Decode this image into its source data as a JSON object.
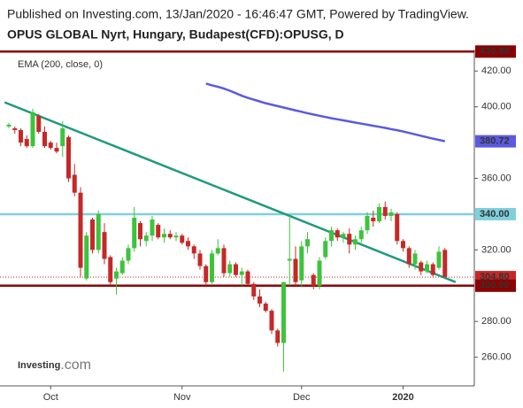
{
  "chart_data": {
    "type": "candlestick",
    "published": "Published on Investing.com, 13/Jan/2020 - 16:46:47 GMT, Powered by TradingView.",
    "title": "OPUS GLOBAL Nyrt, Hungary, Budapest(CFD):OPUSG, D",
    "logo": {
      "name": "Investing",
      "suffix": ".com"
    },
    "up_color": "#3cc43c",
    "down_color": "#c62828",
    "categories": [
      null,
      null,
      null,
      null,
      null,
      null,
      null,
      "Oct",
      null,
      null,
      null,
      null,
      null,
      null,
      null,
      null,
      null,
      null,
      null,
      null,
      null,
      null,
      null,
      null,
      null,
      null,
      null,
      null,
      null,
      "Nov",
      null,
      null,
      null,
      null,
      null,
      null,
      null,
      null,
      null,
      null,
      null,
      null,
      null,
      null,
      null,
      null,
      null,
      null,
      null,
      "Dec",
      null,
      null,
      null,
      null,
      null,
      null,
      null,
      null,
      null,
      null,
      null,
      null,
      null,
      null,
      null,
      null,
      "2020",
      null,
      null,
      null,
      null,
      null,
      null,
      null
    ],
    "open": [
      389,
      388,
      387,
      382,
      378,
      395,
      386,
      380,
      377,
      378,
      383,
      362,
      352,
      304,
      337,
      320,
      330,
      316,
      304,
      307,
      314,
      321,
      335,
      325,
      328,
      334,
      327,
      329,
      327,
      328,
      325,
      322,
      318,
      311,
      302,
      318,
      321,
      307,
      312,
      306,
      308,
      301,
      294,
      290,
      286,
      275,
      268,
      314,
      315,
      303,
      322,
      306,
      300,
      316,
      325,
      331,
      327,
      329,
      323,
      326,
      331,
      338,
      336,
      344,
      339,
      340,
      325,
      321,
      312,
      313,
      308,
      312,
      310,
      320
    ],
    "high": [
      391,
      389,
      388,
      384,
      399,
      396,
      389,
      381,
      380,
      392,
      384,
      368,
      355,
      330,
      338,
      342,
      335,
      317,
      310,
      316,
      323,
      344,
      336,
      330,
      339,
      335,
      332,
      331,
      330,
      329,
      327,
      323,
      320,
      312,
      320,
      326,
      323,
      314,
      313,
      310,
      309,
      302,
      298,
      291,
      287,
      276,
      302,
      339,
      322,
      325,
      330,
      307,
      316,
      327,
      333,
      332,
      330,
      332,
      328,
      333,
      341,
      342,
      346,
      347,
      343,
      341,
      326,
      322,
      320,
      314,
      314,
      313,
      322,
      321
    ],
    "low": [
      388,
      385,
      378,
      377,
      377,
      385,
      377,
      376,
      374,
      372,
      358,
      350,
      305,
      303,
      318,
      318,
      312,
      300,
      295,
      306,
      312,
      319,
      322,
      322,
      325,
      326,
      324,
      326,
      325,
      323,
      320,
      315,
      309,
      300,
      301,
      317,
      305,
      305,
      305,
      300,
      300,
      292,
      288,
      285,
      273,
      266,
      252,
      300,
      300,
      299,
      318,
      298,
      298,
      315,
      322,
      325,
      324,
      318,
      320,
      324,
      329,
      333,
      335,
      337,
      336,
      323,
      319,
      310,
      309,
      306,
      307,
      305,
      309,
      305
    ],
    "close": [
      390,
      387,
      380,
      378,
      397,
      386,
      378,
      377,
      375,
      388,
      360,
      352,
      310,
      328,
      320,
      340,
      315,
      302,
      308,
      314,
      321,
      338,
      326,
      328,
      337,
      327,
      329,
      327,
      328,
      324,
      322,
      318,
      311,
      302,
      318,
      321,
      307,
      312,
      306,
      308,
      301,
      294,
      290,
      286,
      275,
      268,
      302,
      315,
      302,
      322,
      326,
      300,
      314,
      325,
      331,
      327,
      329,
      323,
      326,
      331,
      339,
      336,
      344,
      339,
      341,
      325,
      321,
      312,
      318,
      308,
      312,
      306,
      319,
      304.8
    ],
    "series": [
      {
        "name": "EMA (200, close, 0)",
        "color": "#5a5ae0",
        "values": [
          null,
          null,
          null,
          null,
          null,
          null,
          null,
          null,
          null,
          null,
          null,
          null,
          null,
          null,
          null,
          null,
          null,
          null,
          null,
          null,
          null,
          null,
          null,
          null,
          null,
          null,
          null,
          null,
          null,
          null,
          null,
          null,
          null,
          413,
          412,
          411.2,
          410.2,
          409,
          407.6,
          406.2,
          405,
          404,
          403,
          402,
          401.2,
          400.4,
          399.6,
          398.8,
          398,
          397.2,
          396.4,
          395.7,
          395,
          394.3,
          393.6,
          393,
          392.4,
          391.8,
          391.2,
          390.6,
          390,
          389.4,
          388.8,
          388.2,
          387.5,
          386.9,
          386.2,
          385.4,
          384.6,
          383.8,
          383,
          382.2,
          381.5,
          380.72
        ],
        "last_label": "380.72"
      }
    ],
    "trend_line": {
      "color": "#1e9a7c",
      "x": [
        -0.7,
        74.8
      ],
      "y": [
        402.5,
        302
      ]
    },
    "levels": [
      {
        "value": 430.88,
        "label": "430.88",
        "color": "#8b0000",
        "style": "solid",
        "text_color": "#ffffff"
      },
      {
        "value": 340,
        "label": "340.00",
        "color": "#7fd0dc",
        "style": "solid",
        "text_color": "#000000"
      },
      {
        "value": 304.8,
        "label": "304.80",
        "color": "#c62828",
        "style": "dotted",
        "text_color": "#ffffff"
      },
      {
        "value": 300,
        "label": "300.00",
        "color": "#8b0000",
        "style": "solid",
        "text_color": "#ffffff"
      }
    ],
    "ylim": [
      244,
      432
    ],
    "yticks": [
      {
        "value": 260,
        "label": "260.00"
      },
      {
        "value": 280,
        "label": "280.00"
      },
      {
        "value": 320,
        "label": "320.00"
      },
      {
        "value": 360,
        "label": "360.00"
      },
      {
        "value": 400,
        "label": "400.00"
      },
      {
        "value": 420,
        "label": "420.00"
      }
    ]
  }
}
